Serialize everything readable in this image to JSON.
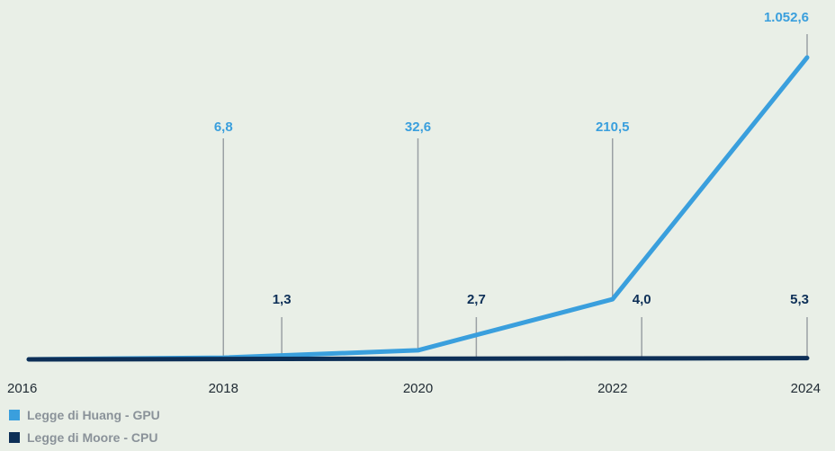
{
  "chart_data": {
    "type": "line",
    "x_ticks": [
      "2016",
      "2018",
      "2020",
      "2022",
      "2024"
    ],
    "series": [
      {
        "name": "Legge di Huang - GPU",
        "color": "#3a9fdd",
        "x": [
          2016,
          2018,
          2020,
          2022,
          2024
        ],
        "y": [
          1,
          6.8,
          32.6,
          210.5,
          1052.6
        ],
        "labels": [
          "6,8",
          "32,6",
          "210,5",
          "1.052,6"
        ],
        "label_x": [
          2018,
          2020,
          2022,
          2024
        ]
      },
      {
        "name": "Legge di Moore - CPU",
        "color": "#0d2f57",
        "x": [
          2016,
          2024
        ],
        "y": [
          1,
          5.3
        ],
        "labels": [
          "1,3",
          "2,7",
          "4,0",
          "5,3"
        ],
        "label_x": [
          2018.6,
          2020.6,
          2022.3,
          2024
        ]
      }
    ],
    "grid": false,
    "legend_position": "bottom-left"
  }
}
